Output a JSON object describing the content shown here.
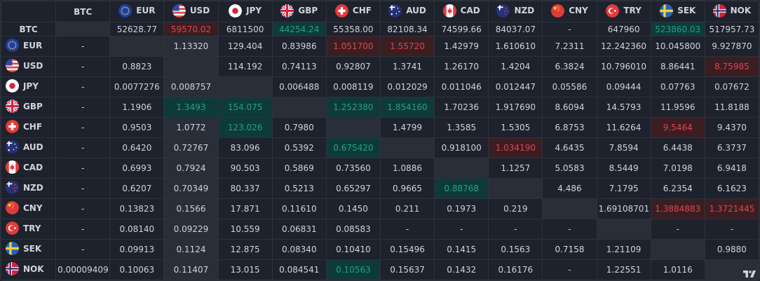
{
  "currencies": [
    "BTC",
    "EUR",
    "USD",
    "JPY",
    "GBP",
    "CHF",
    "AUD",
    "CAD",
    "NZD",
    "CNY",
    "TRY",
    "SEK",
    "NOK"
  ],
  "flags": {
    "EUR": {
      "icon": "eu-flag-icon",
      "colors": [
        "#1f3fa8",
        "#f6cf3d"
      ]
    },
    "USD": {
      "icon": "us-flag-icon",
      "colors": [
        "#e64b4b",
        "#ffffff",
        "#2b4aa8"
      ]
    },
    "JPY": {
      "icon": "jp-flag-icon",
      "colors": [
        "#ffffff",
        "#d6233a"
      ]
    },
    "GBP": {
      "icon": "gb-flag-icon",
      "colors": [
        "#24317a",
        "#ffffff",
        "#d6233a"
      ]
    },
    "CHF": {
      "icon": "ch-flag-icon",
      "colors": [
        "#e03b3b",
        "#ffffff"
      ]
    },
    "AUD": {
      "icon": "au-flag-icon",
      "colors": [
        "#24317a",
        "#ffffff"
      ]
    },
    "CAD": {
      "icon": "ca-flag-icon",
      "colors": [
        "#e03b3b",
        "#ffffff"
      ]
    },
    "NZD": {
      "icon": "nz-flag-icon",
      "colors": [
        "#24317a",
        "#e03b3b"
      ]
    },
    "CNY": {
      "icon": "cn-flag-icon",
      "colors": [
        "#e03b3b",
        "#f6cf3d"
      ]
    },
    "TRY": {
      "icon": "tr-flag-icon",
      "colors": [
        "#e03b3b",
        "#ffffff"
      ]
    },
    "SEK": {
      "icon": "se-flag-icon",
      "colors": [
        "#2266b5",
        "#f6cf3d"
      ]
    },
    "NOK": {
      "icon": "no-flag-icon",
      "colors": [
        "#d6233a",
        "#ffffff",
        "#24317a"
      ]
    }
  },
  "colors": {
    "up": "#1fa38a",
    "down": "#e0454f",
    "background": "#1e222d"
  },
  "highlighted_column": "USD",
  "btc_row": {
    "label": "BTC",
    "cells": [
      {
        "v": ""
      },
      {
        "v": "52628.77"
      },
      {
        "v": "59570.02",
        "s": "down"
      },
      {
        "v": "6811500"
      },
      {
        "v": "44254.24",
        "s": "up"
      },
      {
        "v": "55358.00"
      },
      {
        "v": "82108.34"
      },
      {
        "v": "74599.66"
      },
      {
        "v": "84037.07"
      },
      {
        "v": "-"
      },
      {
        "v": "647960"
      },
      {
        "v": "523860.03",
        "s": "up"
      },
      {
        "v": "517957.73"
      }
    ]
  },
  "rows": [
    {
      "label": "EUR",
      "cells": [
        {
          "v": "-"
        },
        {
          "v": "",
          "s": "self"
        },
        {
          "v": "1.13320"
        },
        {
          "v": "129.404"
        },
        {
          "v": "0.83986"
        },
        {
          "v": "1.051700",
          "s": "down"
        },
        {
          "v": "1.55720",
          "s": "down"
        },
        {
          "v": "1.42979"
        },
        {
          "v": "1.610610"
        },
        {
          "v": "7.2311"
        },
        {
          "v": "12.242360"
        },
        {
          "v": "10.045800"
        },
        {
          "v": "9.927870"
        }
      ]
    },
    {
      "label": "USD",
      "cells": [
        {
          "v": "-"
        },
        {
          "v": "0.8823"
        },
        {
          "v": "",
          "s": "self"
        },
        {
          "v": "114.192"
        },
        {
          "v": "0.74113"
        },
        {
          "v": "0.92807"
        },
        {
          "v": "1.3741"
        },
        {
          "v": "1.26170"
        },
        {
          "v": "1.4204"
        },
        {
          "v": "6.3824"
        },
        {
          "v": "10.796010"
        },
        {
          "v": "8.86441"
        },
        {
          "v": "8.75985",
          "s": "down"
        }
      ]
    },
    {
      "label": "JPY",
      "cells": [
        {
          "v": "-"
        },
        {
          "v": "0.0077276"
        },
        {
          "v": "0.008757"
        },
        {
          "v": "",
          "s": "self"
        },
        {
          "v": "0.006488"
        },
        {
          "v": "0.008119"
        },
        {
          "v": "0.012029"
        },
        {
          "v": "0.011046"
        },
        {
          "v": "0.012447"
        },
        {
          "v": "0.05586"
        },
        {
          "v": "0.09444"
        },
        {
          "v": "0.07763"
        },
        {
          "v": "0.07672"
        }
      ]
    },
    {
      "label": "GBP",
      "cells": [
        {
          "v": "-"
        },
        {
          "v": "1.1906"
        },
        {
          "v": "1.3493",
          "s": "up"
        },
        {
          "v": "154.075",
          "s": "up"
        },
        {
          "v": "",
          "s": "self"
        },
        {
          "v": "1.252380",
          "s": "up"
        },
        {
          "v": "1.854160",
          "s": "up"
        },
        {
          "v": "1.70236"
        },
        {
          "v": "1.917690"
        },
        {
          "v": "8.6094"
        },
        {
          "v": "14.5793"
        },
        {
          "v": "11.9596"
        },
        {
          "v": "11.8188"
        }
      ]
    },
    {
      "label": "CHF",
      "cells": [
        {
          "v": "-"
        },
        {
          "v": "0.9503"
        },
        {
          "v": "1.0772"
        },
        {
          "v": "123.026",
          "s": "up"
        },
        {
          "v": "0.7980"
        },
        {
          "v": "",
          "s": "self"
        },
        {
          "v": "1.4799"
        },
        {
          "v": "1.3585"
        },
        {
          "v": "1.5305"
        },
        {
          "v": "6.8753"
        },
        {
          "v": "11.6264"
        },
        {
          "v": "9.5464",
          "s": "down"
        },
        {
          "v": "9.4370"
        }
      ]
    },
    {
      "label": "AUD",
      "cells": [
        {
          "v": "-"
        },
        {
          "v": "0.6420"
        },
        {
          "v": "0.72767"
        },
        {
          "v": "83.096"
        },
        {
          "v": "0.5392"
        },
        {
          "v": "0.675420",
          "s": "up"
        },
        {
          "v": "",
          "s": "self"
        },
        {
          "v": "0.918100"
        },
        {
          "v": "1.034190",
          "s": "down"
        },
        {
          "v": "4.6435"
        },
        {
          "v": "7.8594"
        },
        {
          "v": "6.4438"
        },
        {
          "v": "6.3737"
        }
      ]
    },
    {
      "label": "CAD",
      "cells": [
        {
          "v": "-"
        },
        {
          "v": "0.6993"
        },
        {
          "v": "0.7924"
        },
        {
          "v": "90.503"
        },
        {
          "v": "0.5869"
        },
        {
          "v": "0.73560"
        },
        {
          "v": "1.0886"
        },
        {
          "v": "",
          "s": "self"
        },
        {
          "v": "1.1257"
        },
        {
          "v": "5.0583"
        },
        {
          "v": "8.5449"
        },
        {
          "v": "7.0198"
        },
        {
          "v": "6.9418"
        }
      ]
    },
    {
      "label": "NZD",
      "cells": [
        {
          "v": "-"
        },
        {
          "v": "0.6207"
        },
        {
          "v": "0.70349"
        },
        {
          "v": "80.337"
        },
        {
          "v": "0.5213"
        },
        {
          "v": "0.65297"
        },
        {
          "v": "0.9665"
        },
        {
          "v": "0.88768",
          "s": "up"
        },
        {
          "v": "",
          "s": "self"
        },
        {
          "v": "4.486"
        },
        {
          "v": "7.1795"
        },
        {
          "v": "6.2354"
        },
        {
          "v": "6.1623"
        }
      ]
    },
    {
      "label": "CNY",
      "cells": [
        {
          "v": "-"
        },
        {
          "v": "0.13823"
        },
        {
          "v": "0.1566"
        },
        {
          "v": "17.871"
        },
        {
          "v": "0.11610"
        },
        {
          "v": "0.1450"
        },
        {
          "v": "0.211"
        },
        {
          "v": "0.1973"
        },
        {
          "v": "0.219"
        },
        {
          "v": "",
          "s": "self"
        },
        {
          "v": "1.69108701"
        },
        {
          "v": "1.3884883",
          "s": "down"
        },
        {
          "v": "1.3721445",
          "s": "down"
        }
      ]
    },
    {
      "label": "TRY",
      "cells": [
        {
          "v": "-"
        },
        {
          "v": "0.08140"
        },
        {
          "v": "0.09229"
        },
        {
          "v": "10.559"
        },
        {
          "v": "0.06831"
        },
        {
          "v": "0.08583"
        },
        {
          "v": "-"
        },
        {
          "v": "-"
        },
        {
          "v": "-"
        },
        {
          "v": "-"
        },
        {
          "v": "",
          "s": "self"
        },
        {
          "v": "-"
        },
        {
          "v": "-"
        }
      ]
    },
    {
      "label": "SEK",
      "cells": [
        {
          "v": "-"
        },
        {
          "v": "0.09913"
        },
        {
          "v": "0.1124"
        },
        {
          "v": "12.875"
        },
        {
          "v": "0.08340"
        },
        {
          "v": "0.10410"
        },
        {
          "v": "0.15496"
        },
        {
          "v": "0.1415"
        },
        {
          "v": "0.1563"
        },
        {
          "v": "0.7158"
        },
        {
          "v": "1.21109"
        },
        {
          "v": "",
          "s": "self"
        },
        {
          "v": "0.9880"
        }
      ]
    },
    {
      "label": "NOK",
      "cells": [
        {
          "v": "0.00009409"
        },
        {
          "v": "0.10063"
        },
        {
          "v": "0.11407"
        },
        {
          "v": "13.015"
        },
        {
          "v": "0.084541"
        },
        {
          "v": "0.10563",
          "s": "up"
        },
        {
          "v": "0.15637"
        },
        {
          "v": "0.1432"
        },
        {
          "v": "0.16176"
        },
        {
          "v": "-"
        },
        {
          "v": "1.22551"
        },
        {
          "v": "1.0116"
        },
        {
          "v": "",
          "s": "self"
        }
      ]
    }
  ],
  "footer": {
    "logo_icon": "tradingview-logo-icon"
  }
}
